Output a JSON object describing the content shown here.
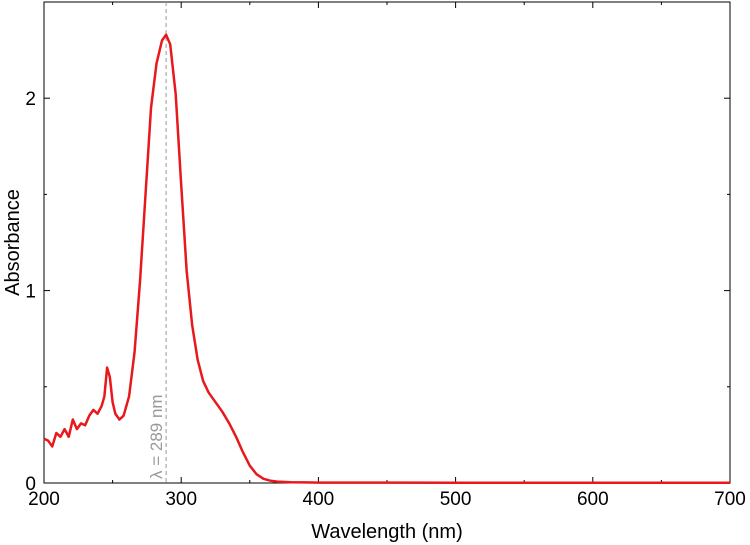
{
  "chart_data": {
    "type": "line",
    "title": "",
    "xlabel": "Wavelength (nm)",
    "ylabel": "Absorbance",
    "xlim": [
      200,
      700
    ],
    "ylim": [
      0,
      2.5
    ],
    "x_ticks": [
      200,
      300,
      400,
      500,
      600,
      700
    ],
    "y_ticks": [
      0,
      1,
      2
    ],
    "grid": false,
    "series": [
      {
        "color": "#e8191c",
        "points": [
          [
            200,
            0.23
          ],
          [
            203,
            0.22
          ],
          [
            206,
            0.19
          ],
          [
            209,
            0.26
          ],
          [
            212,
            0.24
          ],
          [
            215,
            0.28
          ],
          [
            218,
            0.24
          ],
          [
            221,
            0.33
          ],
          [
            224,
            0.28
          ],
          [
            227,
            0.31
          ],
          [
            230,
            0.3
          ],
          [
            233,
            0.35
          ],
          [
            236,
            0.38
          ],
          [
            239,
            0.36
          ],
          [
            242,
            0.4
          ],
          [
            244,
            0.45
          ],
          [
            246,
            0.6
          ],
          [
            248,
            0.55
          ],
          [
            250,
            0.42
          ],
          [
            252,
            0.36
          ],
          [
            255,
            0.33
          ],
          [
            258,
            0.35
          ],
          [
            262,
            0.45
          ],
          [
            266,
            0.68
          ],
          [
            270,
            1.05
          ],
          [
            274,
            1.5
          ],
          [
            278,
            1.95
          ],
          [
            282,
            2.18
          ],
          [
            286,
            2.3
          ],
          [
            289,
            2.33
          ],
          [
            292,
            2.28
          ],
          [
            296,
            2.02
          ],
          [
            300,
            1.55
          ],
          [
            304,
            1.1
          ],
          [
            308,
            0.82
          ],
          [
            312,
            0.64
          ],
          [
            316,
            0.53
          ],
          [
            320,
            0.47
          ],
          [
            325,
            0.42
          ],
          [
            330,
            0.37
          ],
          [
            335,
            0.31
          ],
          [
            340,
            0.24
          ],
          [
            345,
            0.16
          ],
          [
            350,
            0.09
          ],
          [
            355,
            0.045
          ],
          [
            360,
            0.022
          ],
          [
            365,
            0.012
          ],
          [
            370,
            0.007
          ],
          [
            380,
            0.004
          ],
          [
            390,
            0.003
          ],
          [
            400,
            0.002
          ],
          [
            450,
            0.002
          ],
          [
            500,
            0.001
          ],
          [
            550,
            0.001
          ],
          [
            600,
            0.001
          ],
          [
            650,
            0.001
          ],
          [
            700,
            0.001
          ]
        ]
      }
    ],
    "annotations": [
      {
        "text": "λ = 289 nm",
        "x": 289,
        "color": "#999999"
      }
    ]
  }
}
